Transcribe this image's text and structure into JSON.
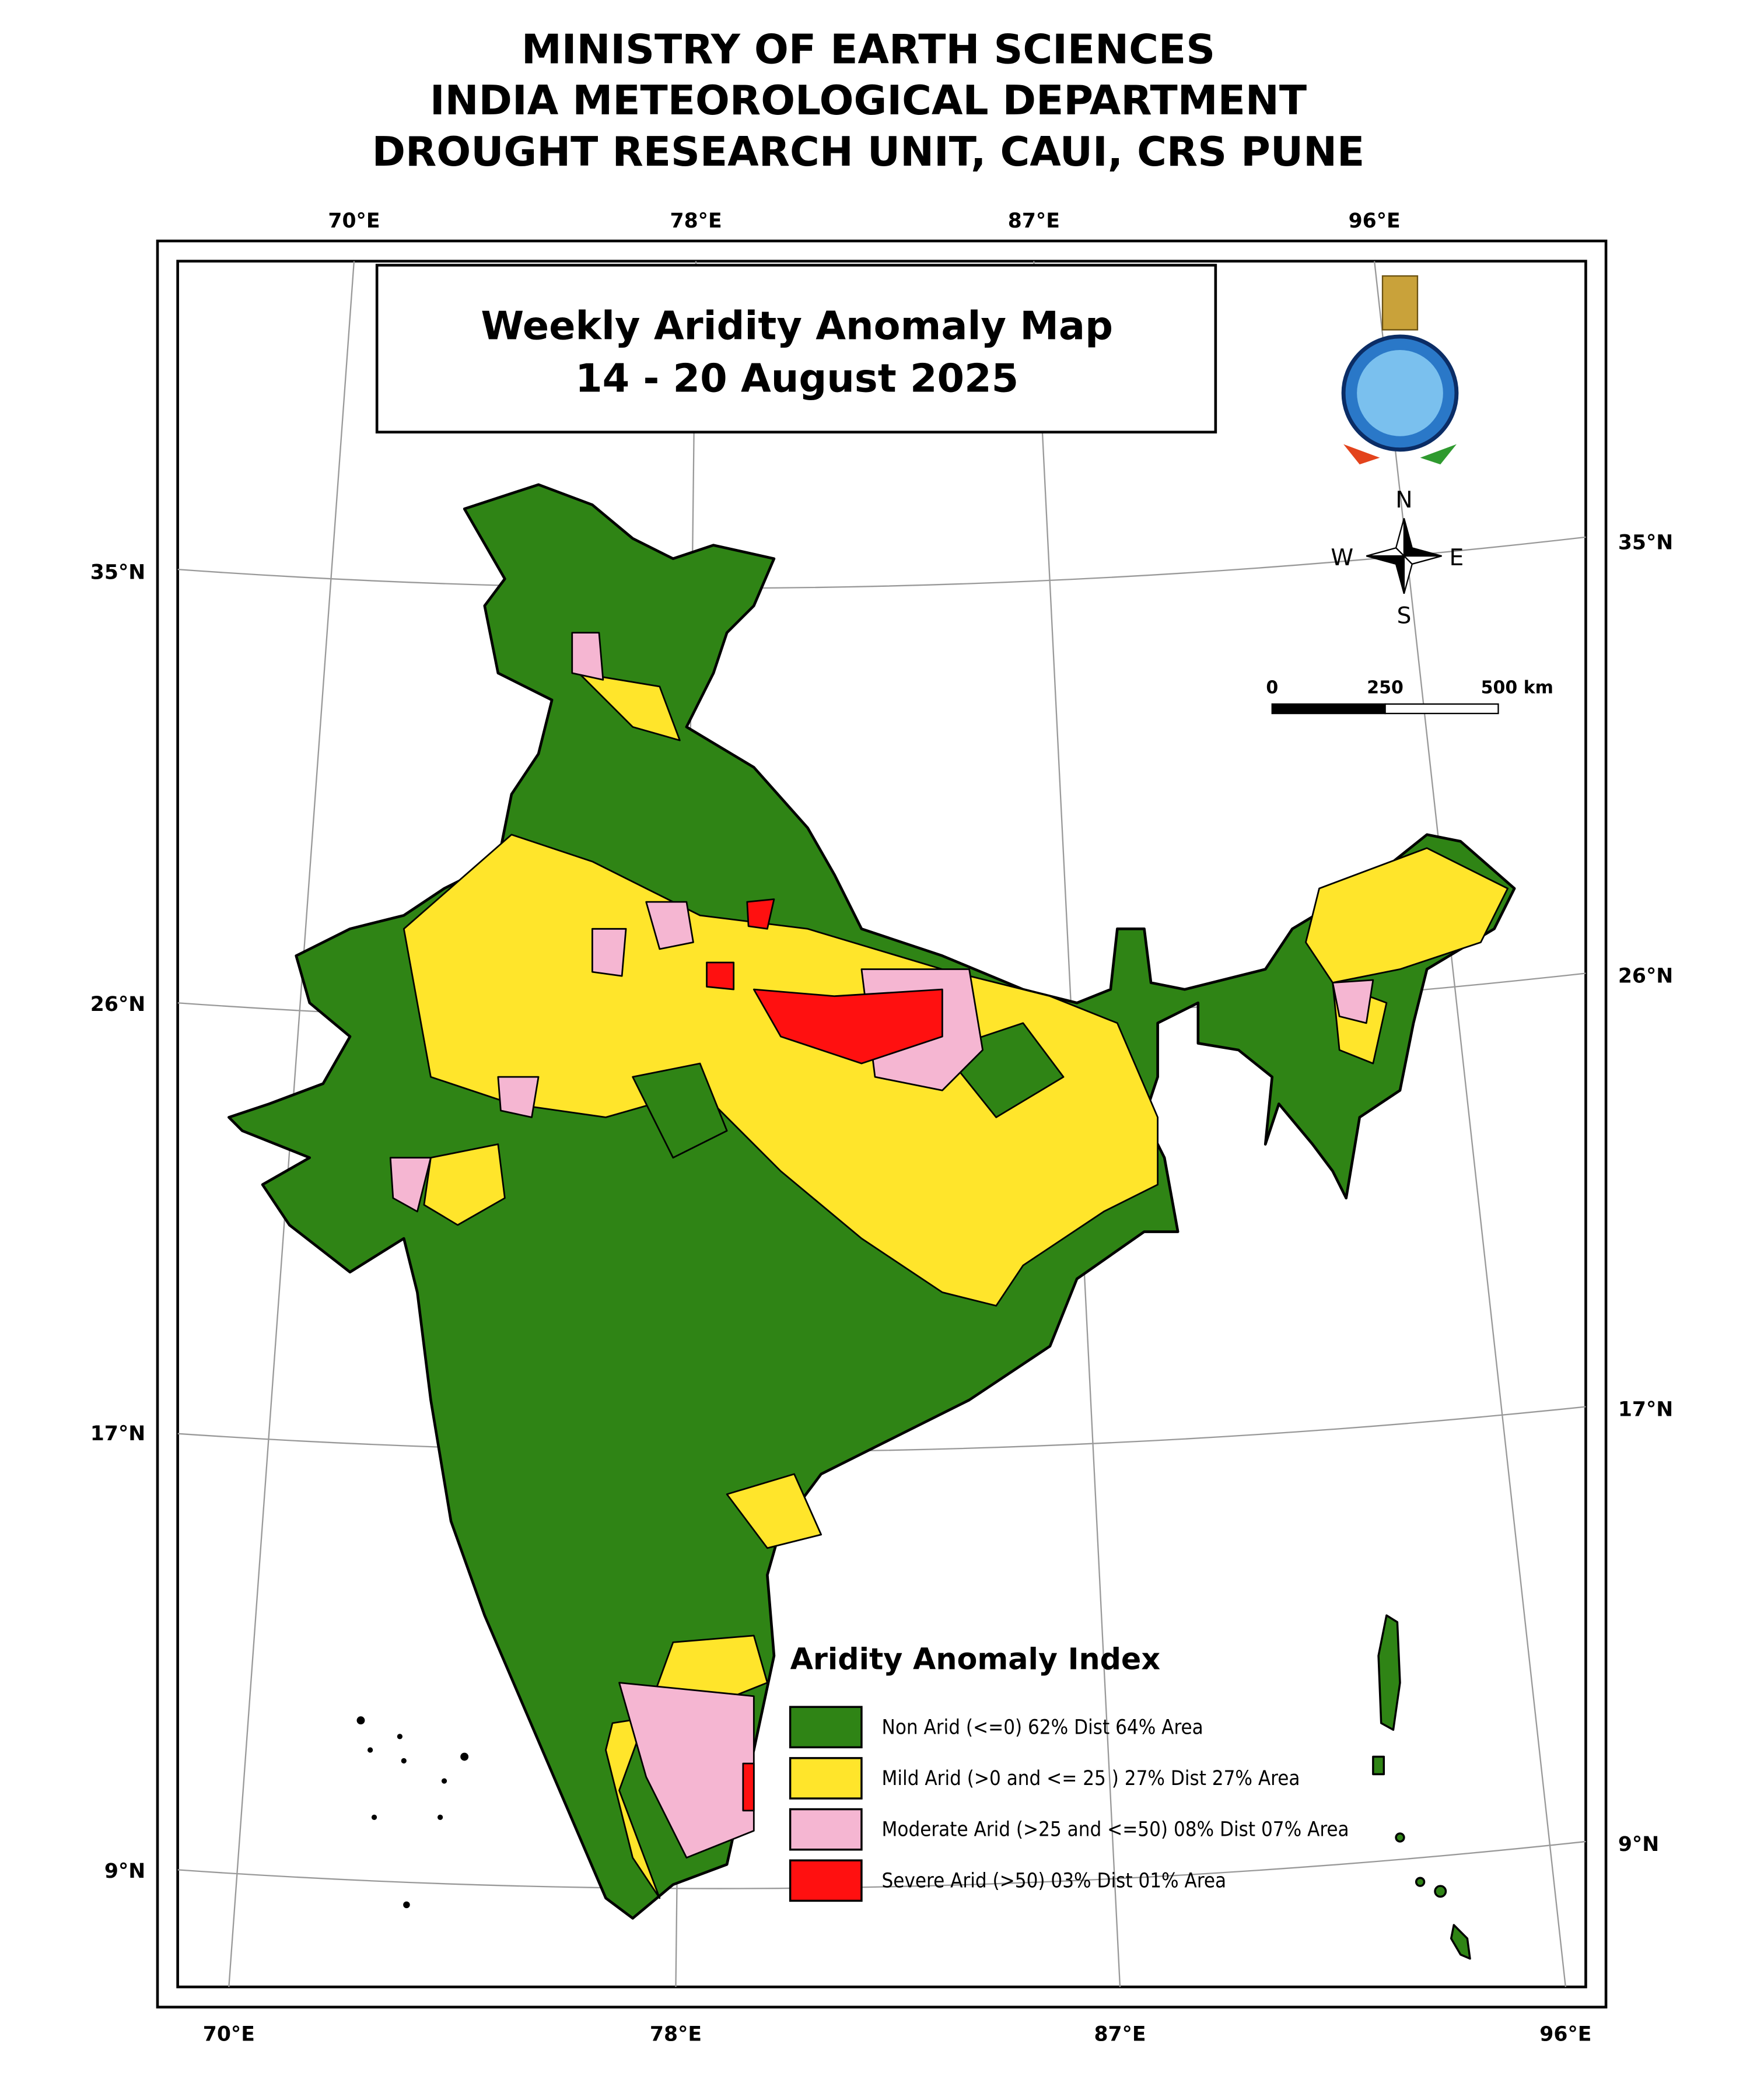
{
  "header": {
    "lines": [
      "MINISTRY OF EARTH SCIENCES",
      "INDIA METEOROLOGICAL DEPARTMENT",
      "DROUGHT RESEARCH UNIT, CAUI, CRS PUNE"
    ]
  },
  "map": {
    "title": [
      "Weekly Aridity Anomaly Map",
      "14 - 20 August  2025"
    ],
    "top_labels": [
      "70°E",
      "78°E",
      "87°E",
      "96°E"
    ],
    "bottom_labels": [
      "70°E",
      "78°E",
      "87°E",
      "96°E"
    ],
    "left_labels": [
      "35°N",
      "26°N",
      "17°N",
      "9°N"
    ],
    "right_labels": [
      "35°N",
      "26°N",
      "17°N",
      "9°N"
    ],
    "compass": [
      "N",
      "S",
      "W",
      "E"
    ],
    "scale_labels": [
      "0",
      "250",
      "500 km"
    ]
  },
  "legend": {
    "title": "Aridity Anomaly Index",
    "items": [
      {
        "label": "Non Arid (<=0) 62% Dist 64% Area",
        "color": "#2f8415"
      },
      {
        "label": "Mild Arid (>0 and <= 25 ) 27% Dist  27% Area",
        "color": "#ffe52b"
      },
      {
        "label": "Moderate Arid (>25 and <=50) 08% Dist 07% Area",
        "color": "#f5b6d2"
      },
      {
        "label": "Severe Arid (>50) 03% Dist  01% Area",
        "color": "#ff1010"
      }
    ]
  }
}
